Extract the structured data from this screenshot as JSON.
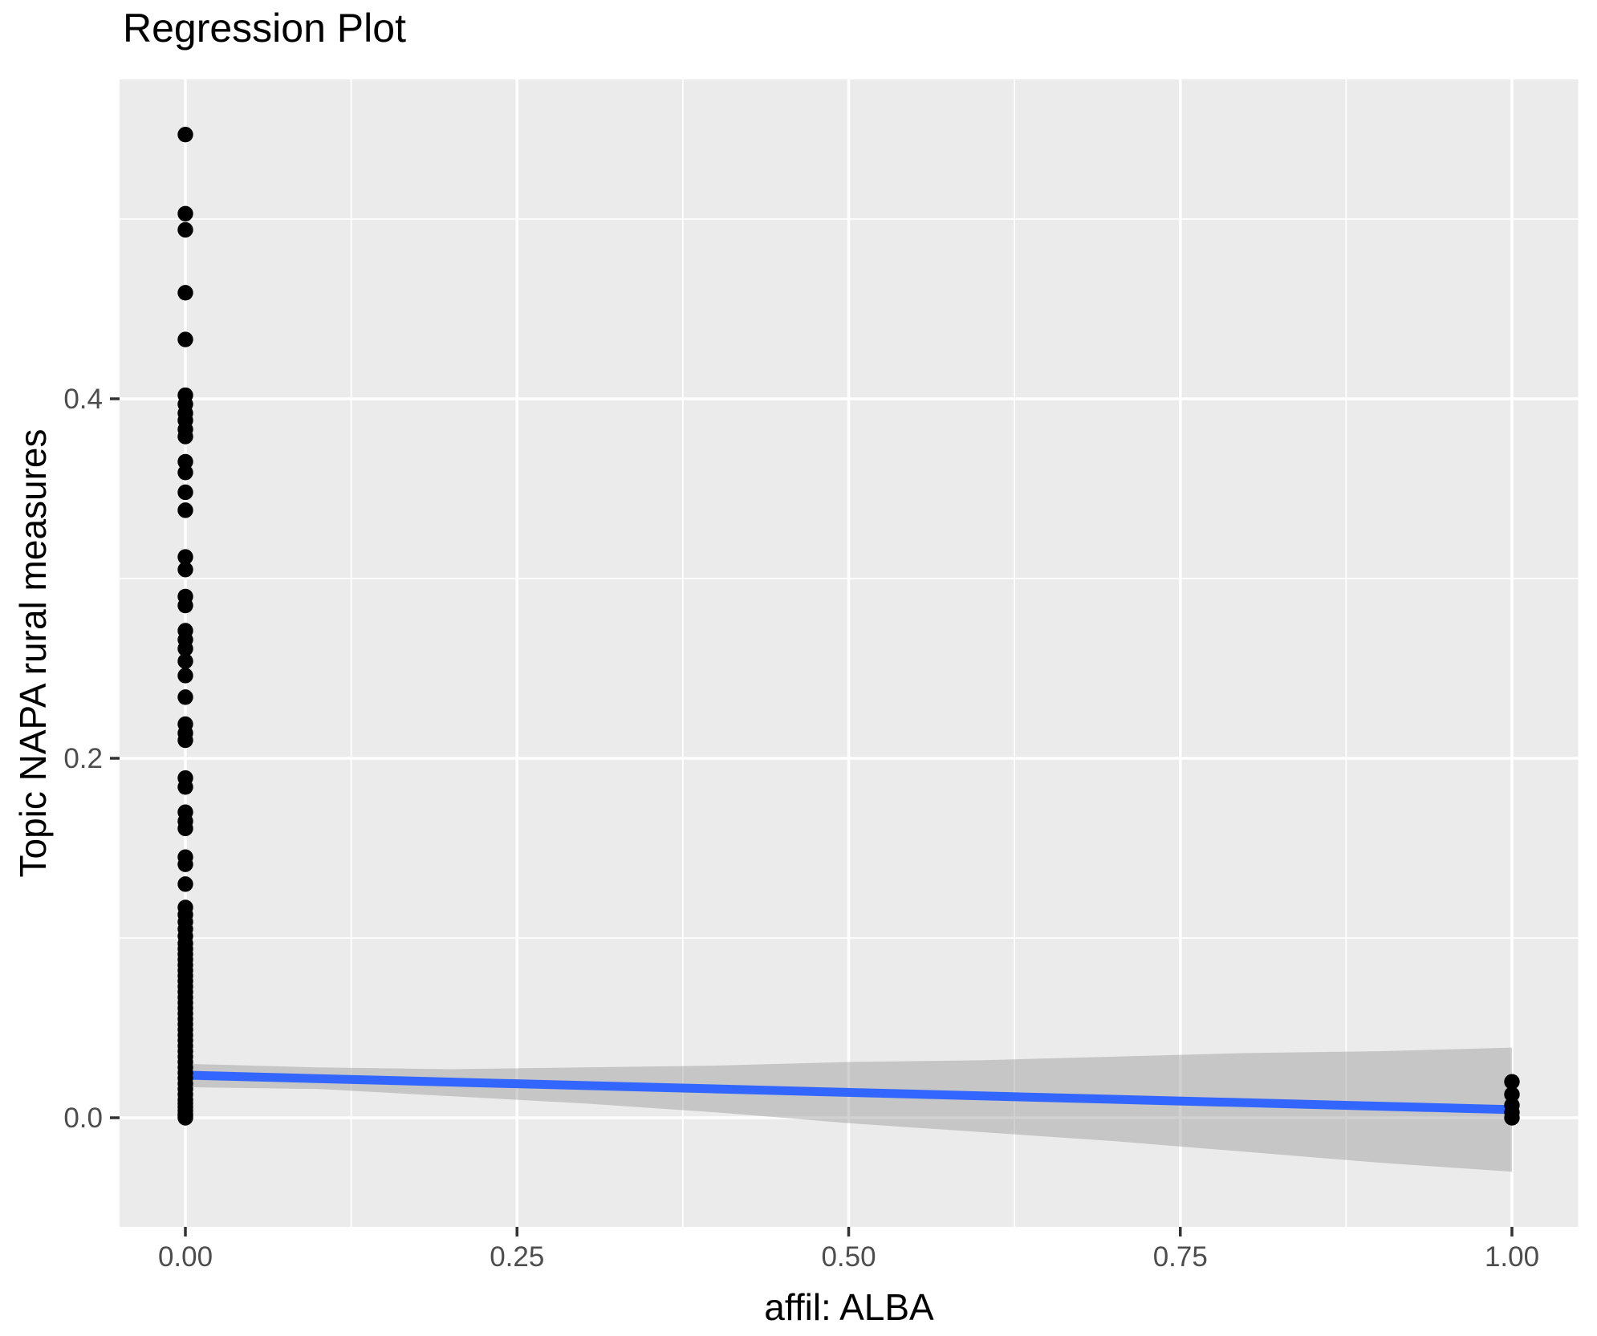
{
  "title": "Regression Plot",
  "chart_data": {
    "type": "scatter",
    "title": "Regression Plot",
    "xlabel": "affil: ALBA",
    "ylabel": "Topic NAPA rural measures",
    "xlim": [
      -0.0496,
      1.0499
    ],
    "ylim": [
      -0.0607,
      0.5777
    ],
    "grid": "on",
    "legend": "none",
    "x_ticks": {
      "values": [
        0,
        0.25,
        0.5,
        0.75,
        1.0
      ],
      "labels": [
        "0.00",
        "0.25",
        "0.50",
        "0.75",
        "1.00"
      ]
    },
    "y_ticks": {
      "values": [
        0,
        0.2,
        0.4
      ],
      "labels": [
        "0.0",
        "0.2",
        "0.4"
      ]
    },
    "x_minor": [
      0.125,
      0.375,
      0.625,
      0.875
    ],
    "y_minor": [
      0.1,
      0.3,
      0.5
    ],
    "series": [
      {
        "name": "observations at affil=0",
        "kind": "points",
        "x": 0,
        "y": [
          0.547,
          0.503,
          0.494,
          0.459,
          0.433,
          0.402,
          0.397,
          0.392,
          0.388,
          0.383,
          0.379,
          0.365,
          0.359,
          0.348,
          0.338,
          0.312,
          0.305,
          0.29,
          0.285,
          0.271,
          0.266,
          0.261,
          0.254,
          0.246,
          0.234,
          0.219,
          0.214,
          0.21,
          0.189,
          0.184,
          0.17,
          0.165,
          0.161,
          0.145,
          0.141,
          0.13,
          0.117,
          0.113,
          0.109,
          0.105,
          0.101,
          0.097,
          0.094,
          0.091,
          0.088,
          0.085,
          0.082,
          0.079,
          0.076,
          0.073,
          0.07,
          0.067,
          0.064,
          0.061,
          0.058,
          0.055,
          0.052,
          0.049,
          0.046,
          0.043,
          0.04,
          0.037,
          0.034,
          0.031,
          0.028,
          0.025,
          0.022,
          0.019,
          0.016,
          0.013,
          0.01,
          0.008,
          0.006,
          0.004,
          0.002,
          0.001,
          0.0
        ]
      },
      {
        "name": "observations at affil=1",
        "kind": "points",
        "x": 1,
        "y": [
          0.02,
          0.013,
          0.007,
          0.003,
          0.0
        ]
      },
      {
        "name": "regression line",
        "kind": "line",
        "x": [
          0,
          1
        ],
        "y": [
          0.0237,
          0.0045
        ]
      },
      {
        "name": "confidence band",
        "kind": "band",
        "x": [
          0,
          0.1,
          0.2,
          0.3,
          0.4,
          0.5,
          0.6,
          0.7,
          0.8,
          0.9,
          1.0
        ],
        "upper": [
          0.03,
          0.028,
          0.027,
          0.028,
          0.029,
          0.031,
          0.032,
          0.034,
          0.036,
          0.037,
          0.039
        ],
        "lower": [
          0.017,
          0.016,
          0.012,
          0.008,
          0.003,
          -0.003,
          -0.008,
          -0.013,
          -0.019,
          -0.025,
          -0.03
        ]
      }
    ],
    "colors": {
      "point": "#000000",
      "line": "#3366FF",
      "band": "rgba(153,153,153,0.45)",
      "panel": "#EBEBEB",
      "grid": "#FFFFFF",
      "tick_label": "#4D4D4D",
      "tick_mark": "#333333",
      "axis_title": "#000000"
    }
  }
}
